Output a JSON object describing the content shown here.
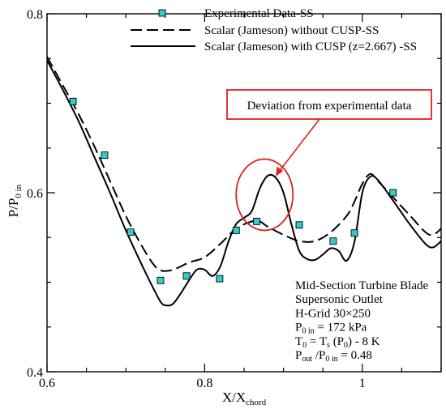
{
  "chart_data": {
    "type": "line",
    "title": "",
    "xlabel": {
      "main": "X/X",
      "sub": "chord"
    },
    "ylabel": {
      "main": "P/P",
      "sub": "0 in"
    },
    "xlim": [
      0.6,
      1.1
    ],
    "ylim": [
      0.4,
      0.8
    ],
    "x_ticks": [
      0.6,
      0.8,
      1.0
    ],
    "y_ticks": [
      0.4,
      0.6,
      0.8
    ],
    "x_tick_labels": [
      "0.6",
      "0.8",
      "1"
    ],
    "y_tick_labels": [
      "0.4",
      "0.6",
      "0.8"
    ],
    "grid": false,
    "legend_placement": "top-right",
    "series": [
      {
        "name": "Experimental Data-SS",
        "type": "scatter",
        "marker": "square",
        "color": "#33cccc",
        "x": [
          0.633,
          0.673,
          0.706,
          0.744,
          0.777,
          0.819,
          0.84,
          0.866,
          0.92,
          0.963,
          0.99,
          1.039
        ],
        "y": [
          0.702,
          0.642,
          0.556,
          0.502,
          0.507,
          0.504,
          0.558,
          0.568,
          0.564,
          0.546,
          0.555,
          0.6
        ]
      },
      {
        "name": "Scalar (Jameson) without CUSP-SS",
        "type": "line",
        "style": "dashed",
        "color": "#000000",
        "x": [
          0.6,
          0.62,
          0.64,
          0.66,
          0.68,
          0.7,
          0.72,
          0.735,
          0.745,
          0.76,
          0.78,
          0.8,
          0.82,
          0.84,
          0.86,
          0.87,
          0.88,
          0.9,
          0.92,
          0.94,
          0.96,
          0.98,
          0.99,
          1.0,
          1.01,
          1.02,
          1.04,
          1.06,
          1.08,
          1.09,
          1.1
        ],
        "y": [
          0.752,
          0.72,
          0.688,
          0.652,
          0.613,
          0.574,
          0.541,
          0.52,
          0.513,
          0.514,
          0.522,
          0.528,
          0.543,
          0.56,
          0.568,
          0.568,
          0.562,
          0.553,
          0.546,
          0.546,
          0.556,
          0.574,
          0.59,
          0.61,
          0.621,
          0.613,
          0.594,
          0.575,
          0.556,
          0.553,
          0.56
        ]
      },
      {
        "name": "Scalar (Jameson) with CUSP (z=2.667) -SS",
        "type": "line",
        "style": "solid",
        "color": "#000000",
        "x": [
          0.6,
          0.62,
          0.64,
          0.66,
          0.68,
          0.7,
          0.72,
          0.735,
          0.745,
          0.752,
          0.76,
          0.77,
          0.78,
          0.79,
          0.8,
          0.81,
          0.82,
          0.83,
          0.84,
          0.85,
          0.86,
          0.87,
          0.88,
          0.89,
          0.9,
          0.91,
          0.92,
          0.93,
          0.94,
          0.95,
          0.96,
          0.97,
          0.98,
          0.99,
          1.0,
          1.01,
          1.02,
          1.04,
          1.06,
          1.08,
          1.09,
          1.1
        ],
        "y": [
          0.748,
          0.715,
          0.68,
          0.64,
          0.6,
          0.558,
          0.52,
          0.493,
          0.477,
          0.474,
          0.476,
          0.488,
          0.502,
          0.514,
          0.514,
          0.507,
          0.518,
          0.545,
          0.565,
          0.572,
          0.58,
          0.605,
          0.619,
          0.617,
          0.6,
          0.565,
          0.535,
          0.526,
          0.525,
          0.531,
          0.538,
          0.535,
          0.524,
          0.545,
          0.6,
          0.618,
          0.614,
          0.59,
          0.565,
          0.543,
          0.539,
          0.546
        ]
      }
    ],
    "annotation": {
      "text": "Deviation from experimental data",
      "color": "#e02020",
      "target": {
        "x": 0.878,
        "y": 0.596
      }
    },
    "info_lines": [
      {
        "main": "Mid-Section Turbine Blade"
      },
      {
        "main": "Supersonic Outlet"
      },
      {
        "main": "H-Grid 30×250"
      },
      {
        "main": "P",
        "sub": "0 in",
        "rest": " = 172 kPa"
      },
      {
        "main": "T",
        "sub": "0",
        "mid": " = T",
        "sub2": "s",
        "rest": " (P",
        "sub3": "0",
        "rest2": ") - 8 K"
      },
      {
        "main": "P",
        "sub": "out",
        "mid": " /P",
        "sub2": "0 in",
        "rest": " = 0.48"
      }
    ]
  }
}
